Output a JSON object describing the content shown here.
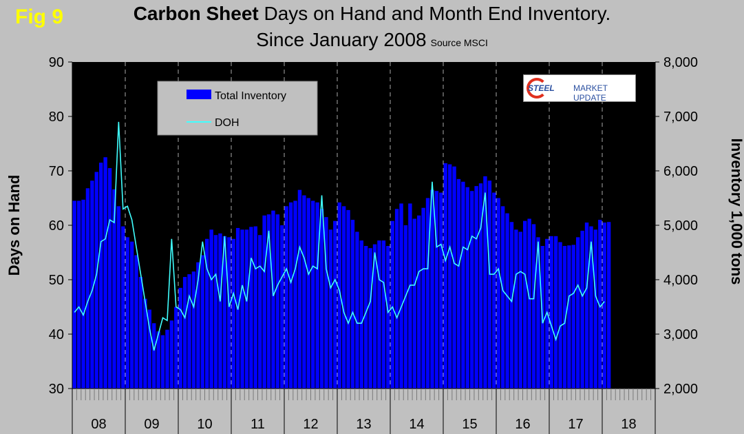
{
  "figure": {
    "fig_label": "Fig 9",
    "title_bold": "Carbon Sheet",
    "title_rest": " Days on Hand and Month End Inventory.",
    "title_line2": "Since January 2008",
    "source": "Source MSCI",
    "logo": {
      "word1": "STEEL",
      "word2": "MARKET UPDATE"
    }
  },
  "chart_data": {
    "type": "bar+line",
    "x_labels": [
      "08",
      "09",
      "10",
      "11",
      "12",
      "13",
      "14",
      "15",
      "16",
      "17",
      "18"
    ],
    "x_start": "2008-01",
    "ylabel_left": "Days on Hand",
    "ylabel_right": "Inventory 1,000 tons",
    "ylim_left": [
      30,
      90
    ],
    "yticks_left": [
      30,
      40,
      50,
      60,
      70,
      80,
      90
    ],
    "ylim_right": [
      2000,
      8000
    ],
    "yticks_right": [
      "2,000",
      "3,000",
      "4,000",
      "5,000",
      "6,000",
      "7,000",
      "8,000"
    ],
    "grid": "vertical dashed at year boundaries",
    "legend_position": "top-left",
    "series": [
      {
        "name": "Total Inventory",
        "type": "bar",
        "axis": "right",
        "color": "#0000ff",
        "values": [
          5450,
          5450,
          5470,
          5680,
          5820,
          5980,
          6150,
          6250,
          6050,
          5660,
          5350,
          4980,
          4780,
          4700,
          4450,
          4050,
          3650,
          3450,
          3200,
          3050,
          2980,
          3080,
          3250,
          3500,
          3850,
          4050,
          4100,
          4150,
          4320,
          4450,
          4750,
          4920,
          4820,
          4850,
          4800,
          4780,
          4750,
          4950,
          4920,
          4920,
          4970,
          4980,
          4820,
          5180,
          5200,
          5270,
          5200,
          5000,
          5350,
          5420,
          5450,
          5650,
          5550,
          5500,
          5450,
          5420,
          5300,
          5150,
          4920,
          5080,
          5420,
          5350,
          5280,
          5100,
          4880,
          4720,
          4620,
          4580,
          4650,
          4720,
          4720,
          4620,
          5080,
          5300,
          5400,
          5000,
          5400,
          5120,
          5180,
          5320,
          5500,
          5650,
          5630,
          5600,
          6140,
          6120,
          6080,
          5850,
          5800,
          5700,
          5630,
          5720,
          5770,
          5900,
          5820,
          5600,
          5500,
          5350,
          5220,
          5060,
          4920,
          4880,
          5080,
          5120,
          5020,
          4780,
          4620,
          4750,
          4800,
          4800,
          4690,
          4620,
          4630,
          4640,
          4780,
          4900,
          5050,
          4980,
          4920,
          5100,
          5050,
          5060
        ]
      },
      {
        "name": "DOH",
        "type": "line",
        "axis": "left",
        "color": "#40ffff",
        "values": [
          44,
          45,
          43.5,
          46,
          48,
          51,
          57,
          57.5,
          61,
          60.5,
          79,
          63,
          63.5,
          61,
          56,
          51,
          46,
          41,
          37,
          40,
          43,
          42.5,
          57.5,
          45,
          44.5,
          43,
          47,
          45,
          50,
          57,
          52,
          50,
          51,
          46,
          58,
          45,
          47.5,
          44.5,
          49,
          46,
          54,
          52,
          52.5,
          51.5,
          59,
          47,
          49,
          50.5,
          52,
          49.5,
          52,
          56,
          54,
          51,
          52.5,
          52,
          65.5,
          52,
          48.5,
          50,
          48,
          44,
          42,
          44,
          42,
          42,
          44,
          46,
          55,
          50,
          49.5,
          44,
          45,
          43,
          45,
          47,
          49,
          49,
          51.5,
          52,
          52,
          68,
          56,
          56.5,
          53.5,
          56,
          53,
          52.5,
          56,
          55.5,
          58,
          57.5,
          59.5,
          66,
          51,
          51,
          52,
          48,
          47,
          46,
          51,
          51.5,
          51,
          46.5,
          46.5,
          57,
          42,
          44,
          41.5,
          39,
          41.5,
          42,
          47,
          47.5,
          49,
          47,
          48.5,
          57,
          47,
          45,
          46
        ]
      }
    ]
  }
}
